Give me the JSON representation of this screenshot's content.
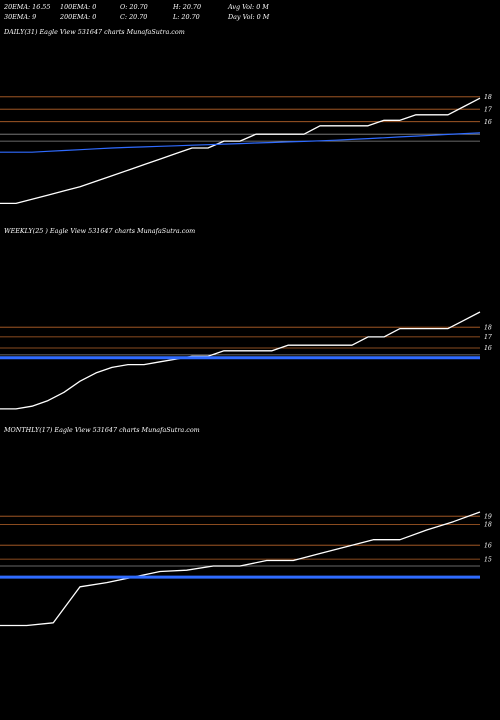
{
  "header": {
    "row1": [
      "20EMA: 16.55",
      "100EMA: 0",
      "O: 20.70",
      "H: 20.70",
      "Avg Vol: 0  M"
    ],
    "row2": [
      "30EMA: 9",
      "200EMA: 0",
      "C: 20.70",
      "L: 20.70",
      "Day Vol: 0  M"
    ]
  },
  "colors": {
    "background": "#000000",
    "price": "#ffffff",
    "ema": "#2f6bff",
    "level": "#b8642a",
    "level_gray": "#8a8a8a"
  },
  "chart_data": [
    {
      "type": "line",
      "title": "DAILY(31) Eagle  View  531647 charts MunafaSutra.com",
      "y_range": [
        13.5,
        20.0
      ],
      "x": [
        0,
        1,
        2,
        3,
        4,
        5,
        6,
        7,
        8,
        9,
        10,
        11,
        12,
        13,
        14,
        15,
        16,
        17,
        18,
        19,
        20,
        21,
        22,
        23,
        24,
        25,
        26,
        27,
        28,
        29,
        30
      ],
      "series": [
        {
          "values": [
            14.1,
            14.1,
            14.25,
            14.4,
            14.55,
            14.7,
            14.9,
            15.1,
            15.3,
            15.5,
            15.7,
            15.9,
            16.1,
            16.1,
            16.35,
            16.35,
            16.6,
            16.6,
            16.6,
            16.6,
            16.9,
            16.9,
            16.9,
            16.9,
            17.1,
            17.1,
            17.3,
            17.3,
            17.3,
            17.6,
            17.9
          ]
        },
        {
          "values": [
            15.95,
            15.95,
            15.95,
            15.98,
            16.01,
            16.04,
            16.07,
            16.1,
            16.12,
            16.14,
            16.16,
            16.18,
            16.2,
            16.22,
            16.24,
            16.26,
            16.28,
            16.3,
            16.32,
            16.34,
            16.36,
            16.38,
            16.41,
            16.44,
            16.47,
            16.5,
            16.53,
            16.56,
            16.59,
            16.62,
            16.65
          ]
        }
      ],
      "levels": [
        {
          "value": 17.95,
          "label": "18"
        },
        {
          "value": 17.5,
          "label": "17"
        },
        {
          "value": 17.05,
          "label": "16"
        },
        {
          "value": 16.6,
          "label": ""
        },
        {
          "value": 16.35,
          "label": ""
        }
      ]
    },
    {
      "type": "line",
      "title": "WEEKLY(25                          ) Eagle  View  531647 charts MunafaSutra.com",
      "y_range": [
        13.5,
        20.0
      ],
      "x": [
        0,
        1,
        2,
        3,
        4,
        5,
        6,
        7,
        8,
        9,
        10,
        11,
        12,
        13,
        14,
        15,
        16,
        17,
        18,
        19,
        20,
        21,
        22,
        23,
        24,
        25,
        26,
        27,
        28,
        29,
        30
      ],
      "series": [
        {
          "values": [
            13.9,
            13.9,
            14.0,
            14.2,
            14.5,
            14.9,
            15.2,
            15.4,
            15.5,
            15.5,
            15.6,
            15.7,
            15.8,
            15.8,
            16.0,
            16.0,
            16.0,
            16.0,
            16.2,
            16.2,
            16.2,
            16.2,
            16.2,
            16.5,
            16.5,
            16.8,
            16.8,
            16.8,
            16.8,
            17.1,
            17.4
          ]
        },
        {
          "values": [
            15.75,
            15.75,
            15.75,
            15.75,
            15.75,
            15.75,
            15.75,
            15.75,
            15.75,
            15.75,
            15.75,
            15.75,
            15.75,
            15.75,
            15.75,
            15.75,
            15.75,
            15.75,
            15.75,
            15.75,
            15.75,
            15.75,
            15.75,
            15.75,
            15.75,
            15.75,
            15.75,
            15.75,
            15.75,
            15.75,
            15.75
          ]
        }
      ],
      "levels": [
        {
          "value": 16.85,
          "label": "18"
        },
        {
          "value": 16.5,
          "label": "17"
        },
        {
          "value": 16.1,
          "label": "16"
        },
        {
          "value": 15.85,
          "label": ""
        }
      ]
    },
    {
      "type": "line",
      "title": "MONTHLY(17) Eagle  View  531647 charts MunafaSutra.com",
      "y_range": [
        13.5,
        20.0
      ],
      "x": [
        0,
        1,
        2,
        3,
        4,
        5,
        6,
        7,
        8,
        9,
        10,
        11,
        12,
        13,
        14,
        15,
        16,
        17,
        18
      ],
      "series": [
        {
          "values": [
            13.3,
            13.3,
            13.4,
            14.7,
            14.85,
            15.05,
            15.25,
            15.3,
            15.45,
            15.45,
            15.65,
            15.65,
            15.9,
            16.15,
            16.4,
            16.4,
            16.75,
            17.05,
            17.4
          ]
        },
        {
          "values": [
            15.05,
            15.05,
            15.05,
            15.05,
            15.05,
            15.05,
            15.05,
            15.05,
            15.05,
            15.05,
            15.05,
            15.05,
            15.05,
            15.05,
            15.05,
            15.05,
            15.05,
            15.05,
            15.05
          ]
        }
      ],
      "levels": [
        {
          "value": 17.25,
          "label": "19"
        },
        {
          "value": 16.95,
          "label": "18"
        },
        {
          "value": 16.2,
          "label": "16"
        },
        {
          "value": 15.7,
          "label": "15"
        },
        {
          "value": 15.45,
          "label": ""
        }
      ]
    }
  ]
}
